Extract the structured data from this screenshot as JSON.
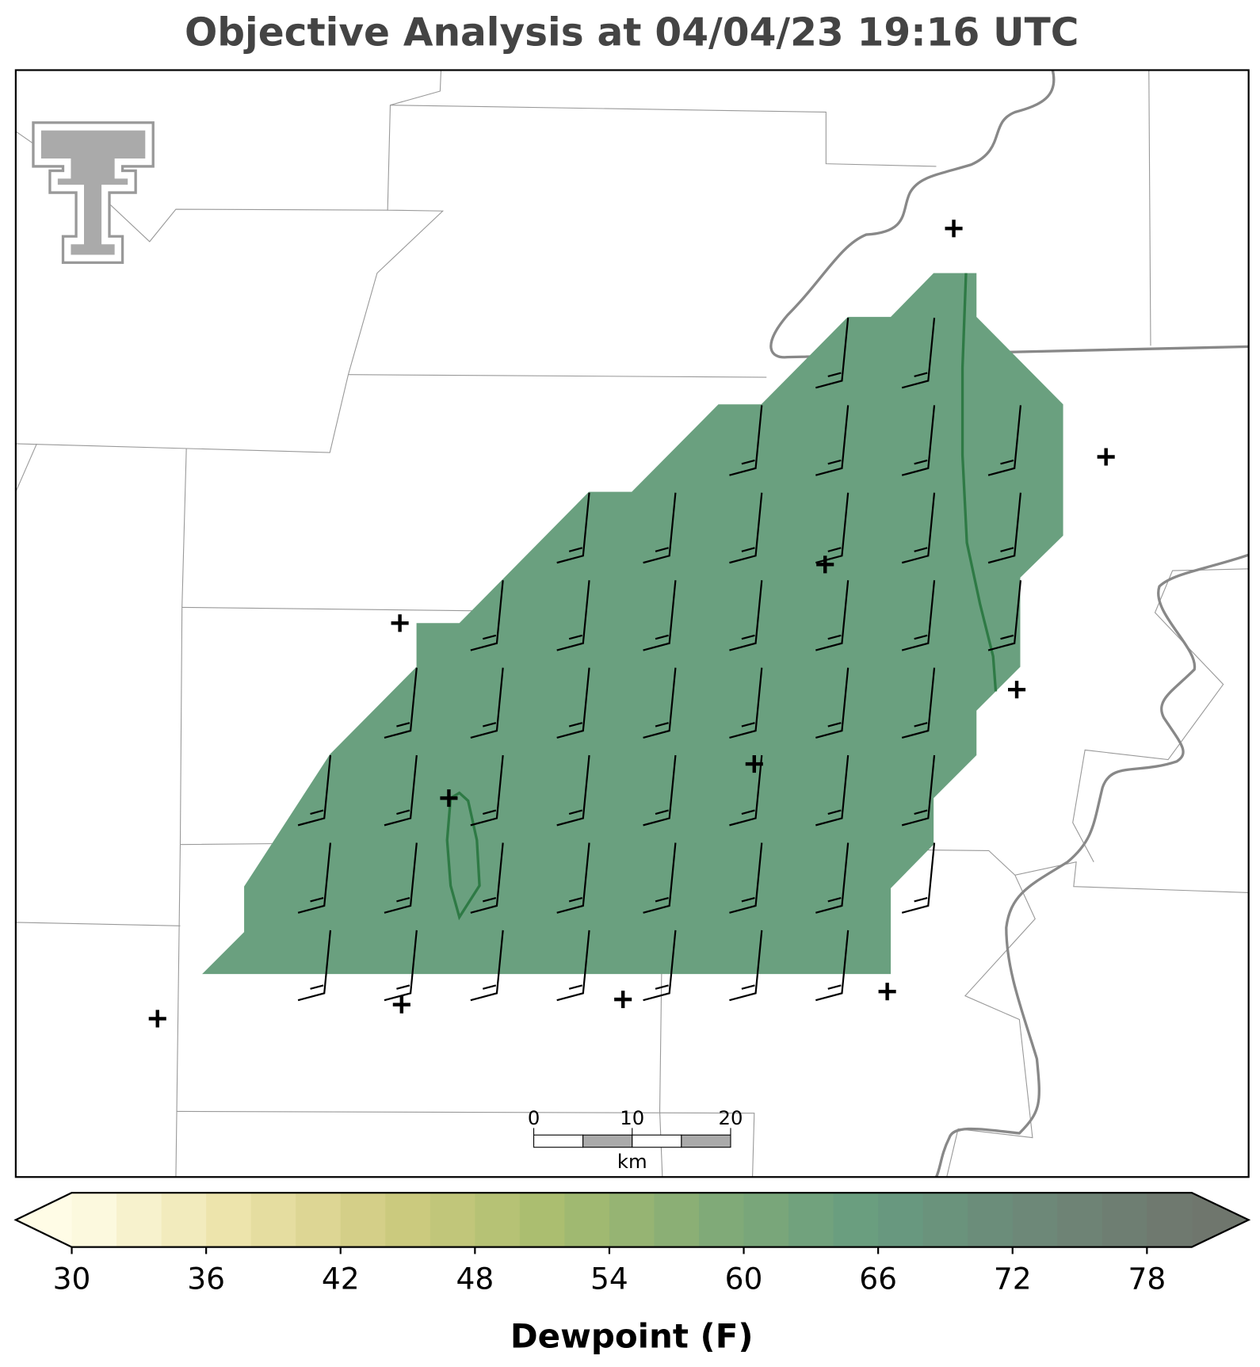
{
  "title": "Objective Analysis at 04/04/23 19:16 UTC",
  "map": {
    "region_color": "#6aa07f",
    "contour_color": "#2e7a45"
  },
  "scale_bar": {
    "ticks": [
      0,
      10,
      20
    ],
    "unit": "km"
  },
  "colorbar": {
    "label": "Dewpoint (F)",
    "range": [
      30,
      80
    ],
    "step": 2,
    "ticks": [
      30,
      36,
      42,
      48,
      54,
      60,
      66,
      72,
      78
    ],
    "colors": [
      "#fffce6",
      "#ede3ab",
      "#cfcb80",
      "#a9bd6f",
      "#82ab77",
      "#679c80",
      "#6d8878",
      "#6f766d"
    ]
  }
}
